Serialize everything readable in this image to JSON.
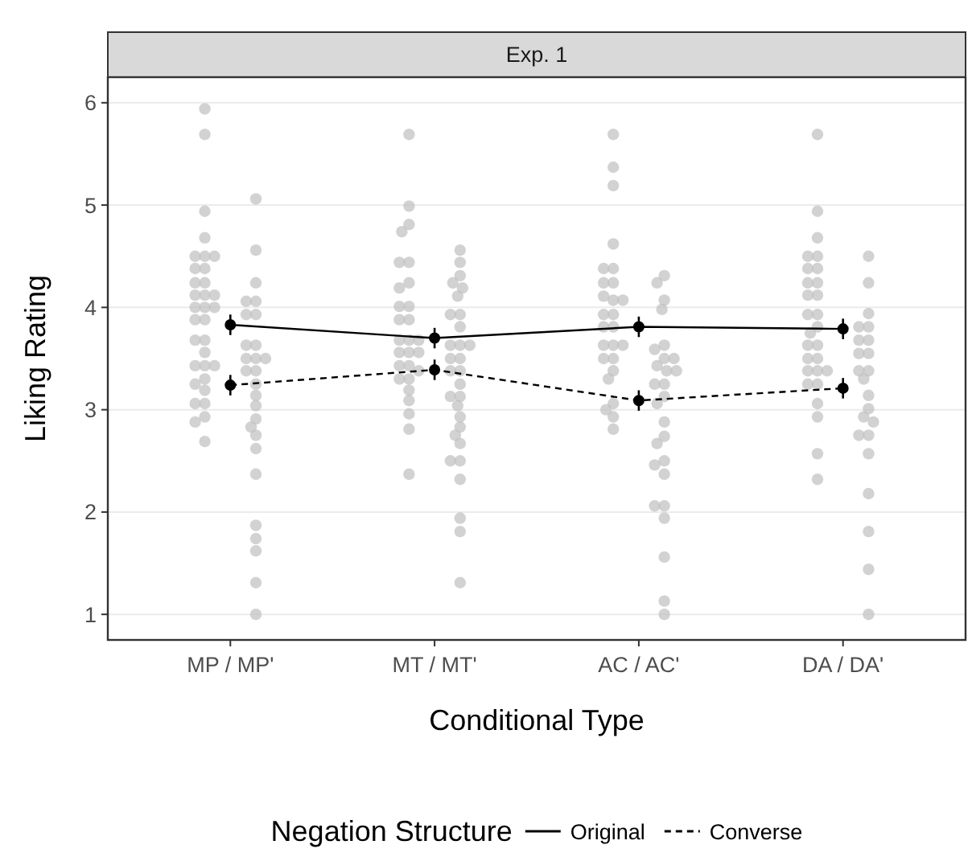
{
  "chart_data": {
    "type": "scatter",
    "title": "Exp. 1",
    "xlabel": "Conditional Type",
    "ylabel": "Liking Rating",
    "legend_title": "Negation Structure",
    "categories": [
      "MP / MP'",
      "MT / MT'",
      "AC / AC'",
      "DA / DA'"
    ],
    "ylim": [
      0.75,
      6.25
    ],
    "yticks": [
      1,
      2,
      3,
      4,
      5,
      6
    ],
    "grid": "y",
    "legend": "bottom",
    "series": [
      {
        "color": "#bfbfbf",
        "marker": "circle",
        "x": [
          "MP / MP'",
          "MP / MP'",
          "MP / MP'",
          "MP / MP'",
          "MP / MP'",
          "MP / MP'",
          "MP / MP'",
          "MP / MP'",
          "MP / MP'",
          "MP / MP'",
          "MP / MP'",
          "MP / MP'",
          "MP / MP'",
          "MP / MP'",
          "MP / MP'",
          "MP / MP'",
          "MP / MP'",
          "MP / MP'",
          "MP / MP'",
          "MP / MP'",
          "MP / MP'",
          "MP / MP'",
          "MP / MP'",
          "MP / MP'",
          "MP / MP'",
          "MP / MP'",
          "MP / MP'",
          "MP / MP'",
          "MP / MP'",
          "MP / MP'",
          "MP / MP'",
          "MP / MP'",
          "MP / MP'",
          "MT / MT'",
          "MT / MT'",
          "MT / MT'",
          "MT / MT'",
          "MT / MT'",
          "MT / MT'",
          "MT / MT'",
          "MT / MT'",
          "MT / MT'",
          "MT / MT'",
          "MT / MT'",
          "MT / MT'",
          "MT / MT'",
          "MT / MT'",
          "MT / MT'",
          "MT / MT'",
          "MT / MT'",
          "MT / MT'",
          "MT / MT'",
          "MT / MT'",
          "MT / MT'",
          "MT / MT'",
          "MT / MT'",
          "MT / MT'",
          "MT / MT'",
          "MT / MT'",
          "MT / MT'",
          "MT / MT'",
          "AC / AC'",
          "AC / AC'",
          "AC / AC'",
          "AC / AC'",
          "AC / AC'",
          "AC / AC'",
          "AC / AC'",
          "AC / AC'",
          "AC / AC'",
          "AC / AC'",
          "AC / AC'",
          "AC / AC'",
          "AC / AC'",
          "AC / AC'",
          "AC / AC'",
          "AC / AC'",
          "AC / AC'",
          "AC / AC'",
          "AC / AC'",
          "AC / AC'",
          "AC / AC'",
          "AC / AC'",
          "AC / AC'",
          "AC / AC'",
          "AC / AC'",
          "AC / AC'",
          "DA / DA'",
          "DA / DA'",
          "DA / DA'",
          "DA / DA'",
          "DA / DA'",
          "DA / DA'",
          "DA / DA'",
          "DA / DA'",
          "DA / DA'",
          "DA / DA'",
          "DA / DA'",
          "DA / DA'",
          "DA / DA'",
          "DA / DA'",
          "DA / DA'",
          "DA / DA'",
          "DA / DA'",
          "DA / DA'",
          "DA / DA'",
          "DA / DA'",
          "DA / DA'",
          "DA / DA'",
          "DA / DA'",
          "DA / DA'",
          "DA / DA'",
          "DA / DA'",
          "DA / DA'",
          "DA / DA'"
        ],
        "values": [
          5.94,
          5.69,
          4.94,
          4.68,
          4.5,
          4.5,
          4.5,
          4.38,
          4.38,
          4.24,
          4.24,
          4.12,
          4.12,
          4.12,
          4.0,
          4.0,
          4.0,
          3.88,
          3.88,
          3.68,
          3.68,
          3.43,
          3.43,
          3.43,
          3.56,
          3.3,
          3.25,
          3.19,
          3.06,
          3.06,
          2.93,
          2.88,
          2.69,
          5.69,
          4.99,
          4.81,
          4.74,
          4.44,
          4.44,
          4.24,
          4.19,
          4.01,
          4.01,
          3.88,
          3.88,
          3.68,
          3.68,
          3.68,
          3.56,
          3.56,
          3.56,
          3.43,
          3.43,
          3.38,
          3.3,
          3.3,
          3.19,
          3.09,
          2.96,
          2.81,
          2.37,
          5.69,
          5.37,
          5.19,
          4.62,
          4.38,
          4.38,
          4.24,
          4.24,
          4.07,
          4.11,
          4.07,
          3.93,
          3.93,
          3.81,
          3.81,
          3.63,
          3.63,
          3.63,
          3.5,
          3.5,
          3.38,
          3.3,
          3.06,
          2.93,
          3.0,
          2.81,
          5.69,
          4.94,
          4.68,
          4.5,
          4.5,
          4.38,
          4.38,
          4.24,
          4.24,
          4.12,
          4.12,
          3.93,
          3.93,
          3.81,
          3.75,
          3.63,
          3.63,
          3.5,
          3.5,
          3.38,
          3.38,
          3.38,
          3.25,
          3.25,
          3.06,
          2.93,
          2.57,
          2.32
        ]
      },
      {
        "color": "#bfbfbf",
        "marker": "circle",
        "x": [
          "MP / MP'",
          "MP / MP'",
          "MP / MP'",
          "MP / MP'",
          "MP / MP'",
          "MP / MP'",
          "MP / MP'",
          "MP / MP'",
          "MP / MP'",
          "MP / MP'",
          "MP / MP'",
          "MP / MP'",
          "MP / MP'",
          "MP / MP'",
          "MP / MP'",
          "MP / MP'",
          "MP / MP'",
          "MP / MP'",
          "MP / MP'",
          "MP / MP'",
          "MP / MP'",
          "MP / MP'",
          "MP / MP'",
          "MP / MP'",
          "MP / MP'",
          "MP / MP'",
          "MP / MP'",
          "MT / MT'",
          "MT / MT'",
          "MT / MT'",
          "MT / MT'",
          "MT / MT'",
          "MT / MT'",
          "MT / MT'",
          "MT / MT'",
          "MT / MT'",
          "MT / MT'",
          "MT / MT'",
          "MT / MT'",
          "MT / MT'",
          "MT / MT'",
          "MT / MT'",
          "MT / MT'",
          "MT / MT'",
          "MT / MT'",
          "MT / MT'",
          "MT / MT'",
          "MT / MT'",
          "MT / MT'",
          "MT / MT'",
          "MT / MT'",
          "MT / MT'",
          "MT / MT'",
          "MT / MT'",
          "MT / MT'",
          "MT / MT'",
          "MT / MT'",
          "AC / AC'",
          "AC / AC'",
          "AC / AC'",
          "AC / AC'",
          "AC / AC'",
          "AC / AC'",
          "AC / AC'",
          "AC / AC'",
          "AC / AC'",
          "AC / AC'",
          "AC / AC'",
          "AC / AC'",
          "AC / AC'",
          "AC / AC'",
          "AC / AC'",
          "AC / AC'",
          "AC / AC'",
          "AC / AC'",
          "AC / AC'",
          "AC / AC'",
          "AC / AC'",
          "AC / AC'",
          "AC / AC'",
          "AC / AC'",
          "AC / AC'",
          "AC / AC'",
          "AC / AC'",
          "DA / DA'",
          "DA / DA'",
          "DA / DA'",
          "DA / DA'",
          "DA / DA'",
          "DA / DA'",
          "DA / DA'",
          "DA / DA'",
          "DA / DA'",
          "DA / DA'",
          "DA / DA'",
          "DA / DA'",
          "DA / DA'",
          "DA / DA'",
          "DA / DA'",
          "DA / DA'",
          "DA / DA'",
          "DA / DA'",
          "DA / DA'",
          "DA / DA'",
          "DA / DA'",
          "DA / DA'",
          "DA / DA'"
        ],
        "values": [
          5.06,
          4.56,
          4.24,
          4.06,
          4.06,
          3.93,
          3.93,
          3.63,
          3.63,
          3.5,
          3.5,
          3.5,
          3.38,
          3.38,
          3.25,
          3.14,
          3.04,
          2.91,
          2.83,
          2.75,
          2.62,
          2.37,
          1.87,
          1.74,
          1.62,
          1.31,
          1.0,
          4.56,
          4.44,
          4.31,
          4.24,
          4.19,
          4.11,
          3.93,
          3.93,
          3.81,
          3.63,
          3.63,
          3.63,
          3.5,
          3.5,
          3.38,
          3.38,
          3.25,
          3.13,
          3.13,
          3.04,
          2.93,
          2.83,
          2.75,
          2.67,
          2.5,
          2.5,
          2.32,
          1.94,
          1.81,
          1.31,
          4.31,
          4.24,
          4.07,
          3.98,
          3.63,
          3.59,
          3.5,
          3.5,
          3.43,
          3.38,
          3.38,
          3.25,
          3.25,
          3.13,
          3.06,
          2.88,
          2.74,
          2.67,
          2.5,
          2.46,
          2.37,
          2.06,
          2.06,
          1.94,
          1.56,
          1.13,
          1.0,
          4.5,
          4.24,
          3.94,
          3.81,
          3.81,
          3.68,
          3.68,
          3.55,
          3.55,
          3.38,
          3.38,
          3.3,
          3.14,
          3.01,
          2.93,
          2.88,
          2.75,
          2.75,
          2.57,
          2.18,
          1.81,
          1.44,
          1.0
        ]
      },
      {
        "type": "line",
        "name": "Original",
        "color": "#000000",
        "marker": "circle",
        "line_style": "solid",
        "values": [
          3.83,
          3.7,
          3.81,
          3.79
        ],
        "errors": [
          0.1,
          0.1,
          0.1,
          0.1
        ]
      },
      {
        "type": "line",
        "name": "Converse",
        "color": "#000000",
        "marker": "circle",
        "line_style": "dashed",
        "values": [
          3.24,
          3.39,
          3.09,
          3.21
        ],
        "errors": [
          0.1,
          0.1,
          0.1,
          0.1
        ]
      }
    ]
  }
}
